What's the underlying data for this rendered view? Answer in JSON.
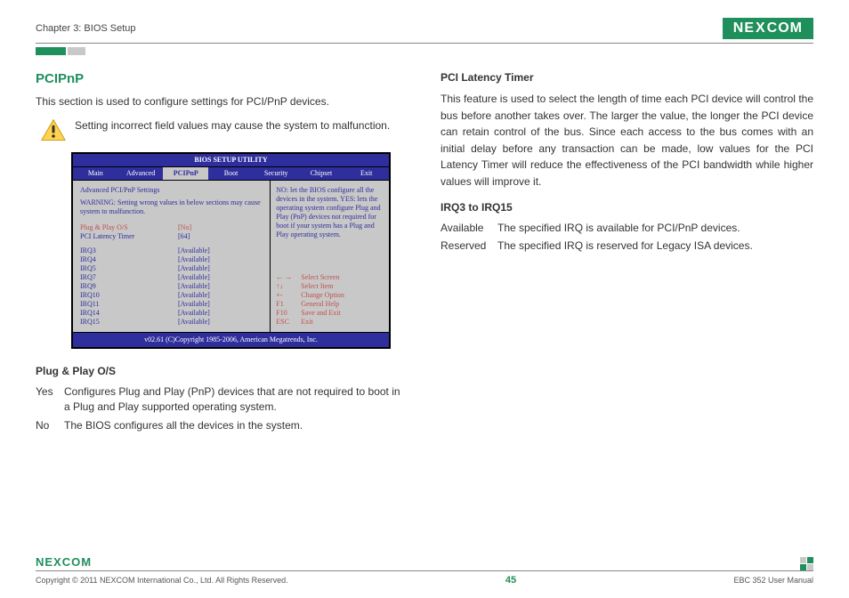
{
  "header": {
    "chapter": "Chapter 3: BIOS Setup",
    "logo_text": "NEXCOM"
  },
  "left": {
    "title": "PCIPnP",
    "intro": "This section is used to configure settings for PCI/PnP devices.",
    "warning": "Setting incorrect field values may cause the system to malfunction.",
    "bios": {
      "title": "BIOS SETUP UTILITY",
      "tabs": [
        "Main",
        "Advanced",
        "PCIPnP",
        "Boot",
        "Security",
        "Chipset",
        "Exit"
      ],
      "selected_tab": "PCIPnP",
      "panel_header": "Advanced PCI/PnP Settings",
      "panel_warning": "WARNING:  Setting wrong values in below sections may cause system to malfunction.",
      "rows_primary": [
        {
          "label": "Plug & Play O/S",
          "value": "[No]",
          "red": true
        },
        {
          "label": "PCI Latency Timer",
          "value": "[64]",
          "red": false
        }
      ],
      "rows_irq": [
        {
          "label": "IRQ3",
          "value": "[Available]"
        },
        {
          "label": "IRQ4",
          "value": "[Available]"
        },
        {
          "label": "IRQ5",
          "value": "[Available]"
        },
        {
          "label": "IRQ7",
          "value": "[Available]"
        },
        {
          "label": "IRQ9",
          "value": "[Available]"
        },
        {
          "label": "IRQ10",
          "value": "[Available]"
        },
        {
          "label": "IRQ11",
          "value": "[Available]"
        },
        {
          "label": "IRQ14",
          "value": "[Available]"
        },
        {
          "label": "IRQ15",
          "value": "[Available]"
        }
      ],
      "help": "NO: let the BIOS configure all the devices in the system. YES: lets the operating system configure Plug and Play (PnP) devices not required for boot if your system has a Plug and Play operating system.",
      "nav": [
        {
          "k": "← →",
          "v": "Select Screen"
        },
        {
          "k": "↑↓",
          "v": "Select Item"
        },
        {
          "k": "+-",
          "v": "Change Option"
        },
        {
          "k": "F1",
          "v": "General Help"
        },
        {
          "k": "F10",
          "v": "Save and Exit"
        },
        {
          "k": "ESC",
          "v": "Exit"
        }
      ],
      "footer": "v02.61 (C)Copyright 1985-2006, American Megatrends, Inc."
    },
    "sub1_title": "Plug & Play O/S",
    "sub1_rows": [
      {
        "k": "Yes",
        "v": "Configures Plug and Play (PnP) devices that are not required to boot in a Plug and Play supported operating system."
      },
      {
        "k": "No",
        "v": "The BIOS configures all the devices in the system."
      }
    ]
  },
  "right": {
    "sub1_title": "PCI Latency Timer",
    "sub1_text": "This feature is used to select the length of time each PCI device will control the bus before another takes over. The larger the value, the longer the PCI device can retain control of the bus. Since each access to the bus comes with an initial delay before any transaction can be made, low values for the PCI Latency Timer will reduce the effectiveness of the PCI bandwidth while higher values will improve it.",
    "sub2_title": "IRQ3 to IRQ15",
    "sub2_rows": [
      {
        "k": "Available",
        "v": "The specified IRQ is available for PCI/PnP devices."
      },
      {
        "k": "Reserved",
        "v": "The specified IRQ is reserved for Legacy ISA devices."
      }
    ]
  },
  "footer": {
    "logo": "NEXCOM",
    "copyright": "Copyright © 2011 NEXCOM International Co., Ltd. All Rights Reserved.",
    "page": "45",
    "manual": "EBC 352 User Manual"
  },
  "colors": {
    "brand": "#1f8f5b",
    "bios_bg": "#2e2e9c",
    "bios_panel": "#c8c8c8",
    "bios_red": "#c0504d"
  }
}
